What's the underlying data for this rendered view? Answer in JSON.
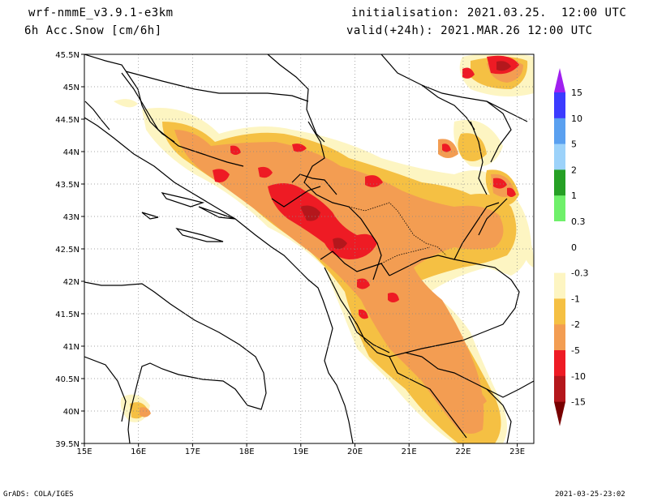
{
  "header": {
    "model": "wrf-nmmE_v3.9.1-e3km",
    "field": "6h Acc.Snow [cm/6h]",
    "init": "initialisation: 2021.03.25.  12:00 UTC",
    "valid": "valid(+24h): 2021.MAR.26 12:00 UTC"
  },
  "footer": {
    "left": "GrADS: COLA/IGES",
    "right": "2021-03-25-23:02"
  },
  "map": {
    "lat_labels": [
      "45.5N",
      "45N",
      "44.5N",
      "44N",
      "43.5N",
      "43N",
      "42.5N",
      "42N",
      "41.5N",
      "41N",
      "40.5N",
      "40N",
      "39.5N"
    ],
    "lon_labels": [
      "15E",
      "16E",
      "17E",
      "18E",
      "19E",
      "20E",
      "21E",
      "22E",
      "23E"
    ],
    "colors": {
      "pale_yellow": "#fdf5c2",
      "light_orange": "#f5c043",
      "orange": "#f39d52",
      "red": "#ee1b24",
      "dark_red": "#b4171c"
    }
  },
  "colorbar": {
    "labels": [
      "15",
      "10",
      "5",
      "2",
      "1",
      "0.3",
      "0",
      "-0.3",
      "-1",
      "-2",
      "-5",
      "-10",
      "-15"
    ],
    "colors": [
      "#a020f0",
      "#3b3bff",
      "#5aa0f0",
      "#9cd2fa",
      "#26a025",
      "#6ff06a",
      "#ffffff",
      "#ffffff",
      "#fdf5c2",
      "#f5c043",
      "#f39d52",
      "#ee1b24",
      "#b4171c",
      "#780000"
    ]
  }
}
